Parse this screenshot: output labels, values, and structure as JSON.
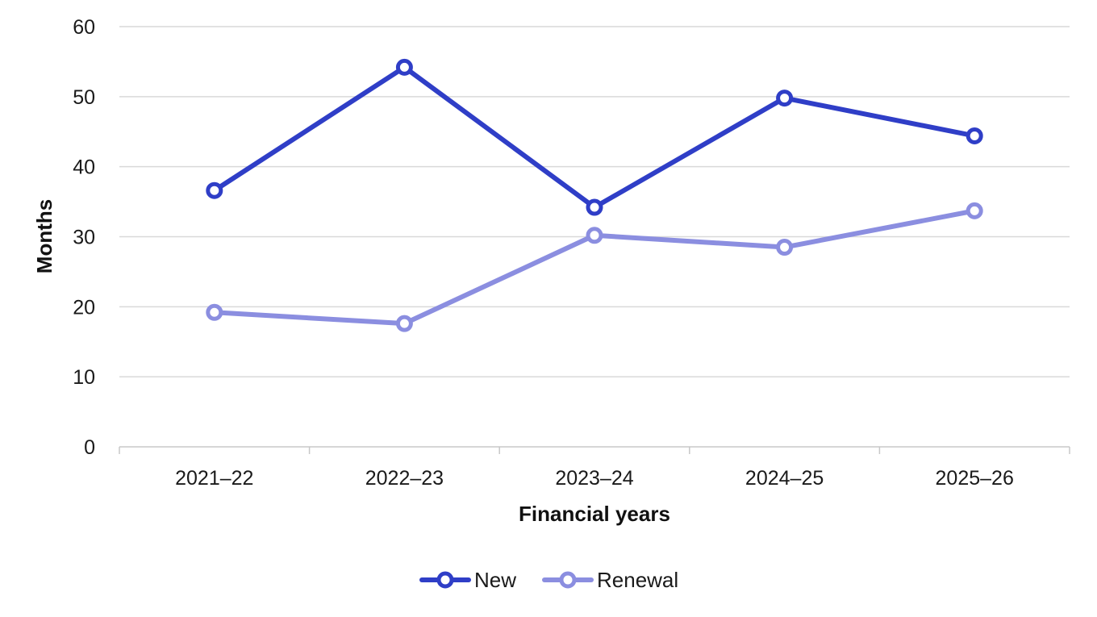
{
  "chart_data": {
    "type": "line",
    "categories": [
      "2021–22",
      "2022–23",
      "2023–24",
      "2024–25",
      "2025–26"
    ],
    "series": [
      {
        "name": "New",
        "values": [
          36.6,
          54.2,
          34.2,
          49.8,
          44.4
        ],
        "color": "#2f3ec7"
      },
      {
        "name": "Renewal",
        "values": [
          19.2,
          17.6,
          30.2,
          28.5,
          33.7
        ],
        "color": "#8b8ee0"
      }
    ],
    "xlabel": "Financial years",
    "ylabel": "Months",
    "ylim": [
      0,
      60
    ],
    "yticks": [
      0,
      10,
      20,
      30,
      40,
      50,
      60
    ],
    "grid": true,
    "legend": "bottom-center"
  }
}
